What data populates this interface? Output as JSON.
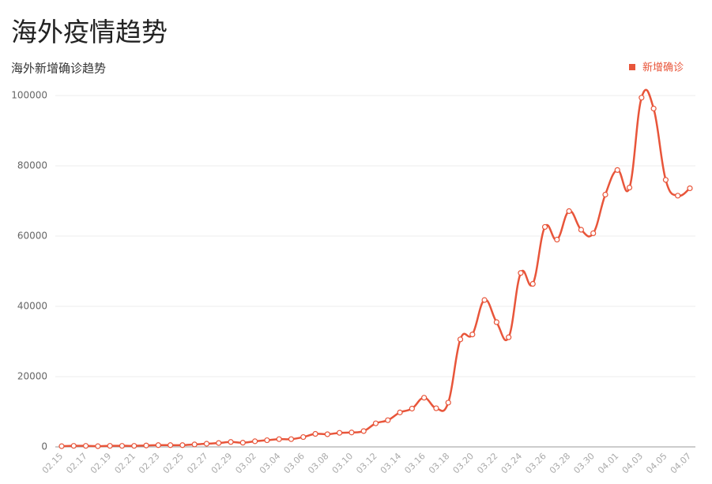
{
  "page_title": "海外疫情趋势",
  "chart_data": {
    "type": "line",
    "title": "海外新增确诊趋势",
    "categories": [
      "02.15",
      null,
      "02.17",
      null,
      "02.19",
      null,
      "02.21",
      null,
      "02.23",
      null,
      "02.25",
      null,
      "02.27",
      null,
      "02.29",
      null,
      "03.02",
      null,
      "03.04",
      null,
      "03.06",
      null,
      "03.08",
      null,
      "03.10",
      null,
      "03.12",
      null,
      "03.14",
      null,
      "03.16",
      null,
      "03.18",
      null,
      "03.20",
      null,
      "03.22",
      null,
      "03.24",
      null,
      "03.26",
      null,
      "03.28",
      null,
      "03.30",
      null,
      "04.01",
      null,
      "04.03",
      null,
      "04.05",
      null,
      "04.07"
    ],
    "series": [
      {
        "name": "新增确诊",
        "color": "#e8553a",
        "values": [
          200,
          300,
          300,
          200,
          300,
          300,
          300,
          400,
          500,
          500,
          500,
          700,
          900,
          1100,
          1400,
          1200,
          1600,
          1900,
          2200,
          2200,
          2800,
          3700,
          3600,
          4000,
          4100,
          4500,
          6700,
          7600,
          9800,
          10900,
          14000,
          11000,
          12600,
          30600,
          32000,
          41800,
          35500,
          31200,
          49500,
          46400,
          62600,
          59000,
          67100,
          61800,
          60800,
          71800,
          78800,
          73800,
          99400,
          96300,
          76000,
          71500,
          73600
        ]
      }
    ],
    "ylim": [
      0,
      100000
    ],
    "yticks": [
      0,
      20000,
      40000,
      60000,
      80000,
      100000
    ],
    "grid": true,
    "legend": "top-right"
  }
}
